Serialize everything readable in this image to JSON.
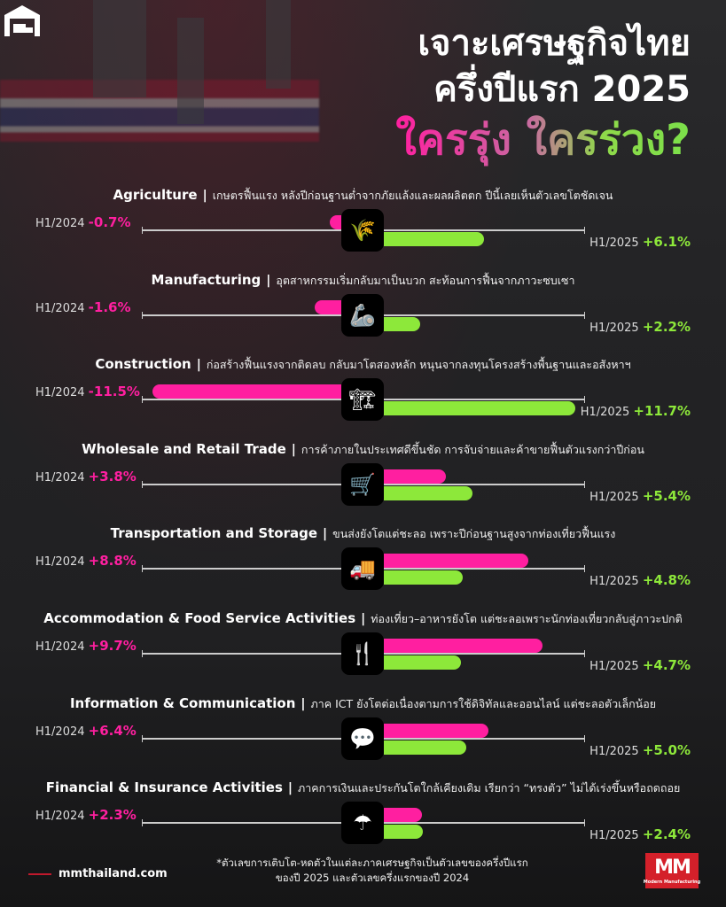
{
  "header": {
    "line1": "เจาะเศรษฐกิจไทย",
    "line2": "ครึ่งปีแรก 2025",
    "line3": "ใครรุ่ง ใครร่วง?"
  },
  "colors": {
    "h1_2024": "#ff1fa0",
    "h1_2025": "#8de83a",
    "background": "#1c1c1e"
  },
  "chart_data": {
    "type": "bar",
    "orientation": "horizontal-diverging",
    "categories": [
      "Agriculture",
      "Manufacturing",
      "Construction",
      "Wholesale and Retail Trade",
      "Transportation and Storage",
      "Accommodation & Food Service Activities",
      "Information & Communication",
      "Financial & Insurance Activities"
    ],
    "series": [
      {
        "name": "H1/2024",
        "values": [
          -0.7,
          -1.6,
          -11.5,
          3.8,
          8.8,
          9.7,
          6.4,
          2.3
        ],
        "labels": [
          "-0.7%",
          "-1.6%",
          "-11.5%",
          "+3.8%",
          "+8.8%",
          "+9.7%",
          "+6.4%",
          "+2.3%"
        ]
      },
      {
        "name": "H1/2025",
        "values": [
          6.1,
          2.2,
          11.7,
          5.4,
          4.8,
          4.7,
          5.0,
          2.4
        ],
        "labels": [
          "+6.1%",
          "+2.2%",
          "+11.7%",
          "+5.4%",
          "+4.8%",
          "+4.7%",
          "+5.0%",
          "+2.4%"
        ]
      }
    ],
    "descriptions": [
      "เกษตรฟื้นแรง หลังปีก่อนฐานต่ำจากภัยแล้งและผลผลิตตก ปีนี้เลยเห็นตัวเลขโตชัดเจน",
      "อุตสาหกรรมเริ่มกลับมาเป็นบวก สะท้อนการฟื้นจากภาวะซบเซา",
      "ก่อสร้างฟื้นแรงจากติดลบ กลับมาโตสองหลัก หนุนจากลงทุนโครงสร้างพื้นฐานและอสังหาฯ",
      "การค้าภายในประเทศดีขึ้นชัด การจับจ่ายและค้าขายฟื้นตัวแรงกว่าปีก่อน",
      "ขนส่งยังโตแต่ชะลอ เพราะปีก่อนฐานสูงจากท่องเที่ยวฟื้นแรง",
      "ท่องเที่ยว–อาหารยังโต แต่ชะลอเพราะนักท่องเที่ยวกลับสู่ภาวะปกติ",
      "ภาค ICT ยังโตต่อเนื่องตามการใช้ดิจิทัลและออนไลน์ แต่ชะลอตัวเล็กน้อย",
      "ภาคการเงินและประกันโตใกล้เคียงเดิม เรียกว่า “ทรงตัว” ไม่ได้เร่งขึ้นหรือถดถอย"
    ],
    "icons": [
      "crops-icon",
      "robot-arm-icon",
      "crane-icon",
      "shopping-cart-icon",
      "warehouse-truck-icon",
      "food-utensils-icon",
      "chat-bubbles-icon",
      "insurance-money-hand-icon"
    ]
  },
  "footer": {
    "site": "mmthailand.com",
    "note_line1": "*ตัวเลขการเติบโต-หดตัวในแต่ละภาคเศรษฐกิจเป็นตัวเลขของครึ่งปีแรก",
    "note_line2": "ของปี 2025 และตัวเลขครึ่งแรกของปี 2024",
    "logo": "MM",
    "logo_sub": "Modern Manufacturing"
  }
}
